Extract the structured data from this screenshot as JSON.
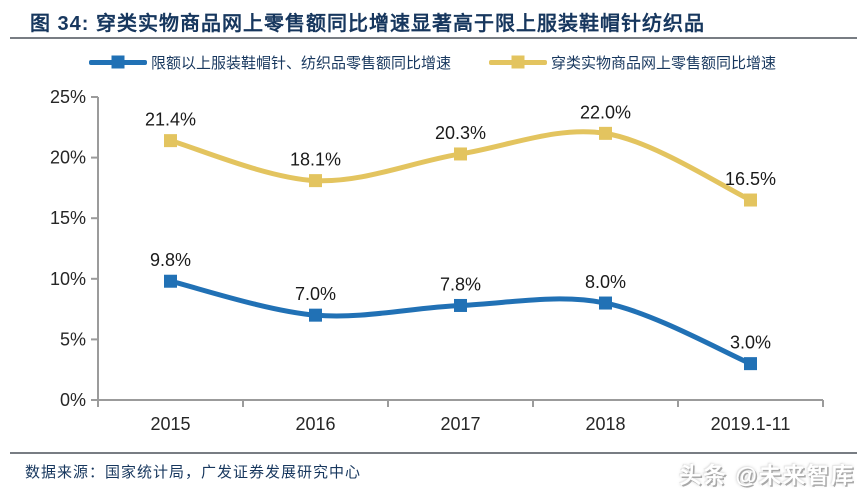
{
  "page": {
    "title": "图 34:  穿类实物商品网上零售额同比增速显著高于限上服装鞋帽针纺织品",
    "footer_source": "数据来源：国家统计局，广发证券发展研究中心",
    "watermark": "头条 @未来智库"
  },
  "colors": {
    "title_navy": "#17375E",
    "rule_gray": "#787d83",
    "axis_gray": "#9b9b9b",
    "tick_label": "#262626",
    "data_label": "#1a1a1a",
    "blue_series": "#2171B5",
    "yellow_series": "#E3C45F"
  },
  "chart_data": {
    "type": "line",
    "smooth": true,
    "grid": false,
    "legend_position": "top",
    "categories": [
      "2015",
      "2016",
      "2017",
      "2018",
      "2019.1-11"
    ],
    "series": [
      {
        "name": "限额以上服装鞋帽针、纺织品零售额同比增速",
        "color": "#2171B5",
        "values": [
          9.8,
          7.0,
          7.8,
          8.0,
          3.0
        ],
        "labels": [
          "9.8%",
          "7.0%",
          "7.8%",
          "8.0%",
          "3.0%"
        ]
      },
      {
        "name": "穿类实物商品网上零售额同比增速",
        "color": "#E3C45F",
        "values": [
          21.4,
          18.1,
          20.3,
          22.0,
          16.5
        ],
        "labels": [
          "21.4%",
          "18.1%",
          "20.3%",
          "22.0%",
          "16.5%"
        ]
      }
    ],
    "ylim": [
      0,
      25
    ],
    "ytick_step": 5,
    "ytick_labels": [
      "0%",
      "5%",
      "10%",
      "15%",
      "20%",
      "25%"
    ],
    "xlabel": "",
    "ylabel": ""
  }
}
